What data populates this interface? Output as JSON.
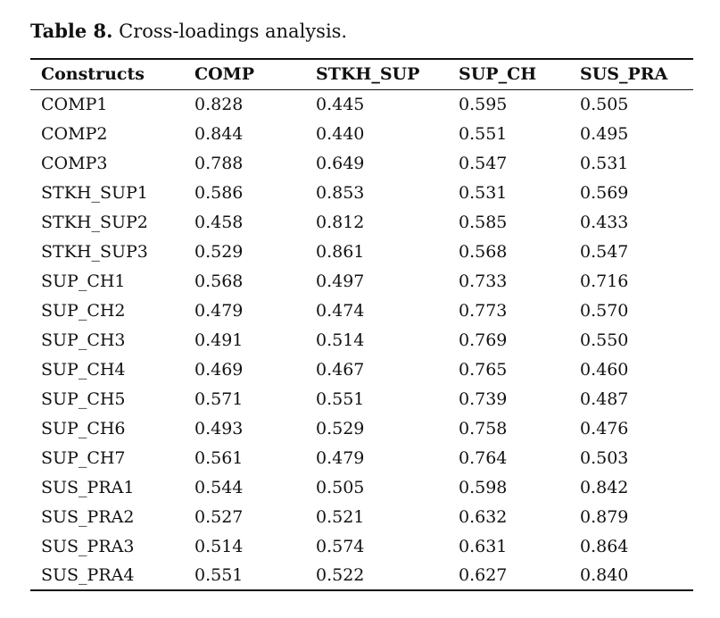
{
  "caption": {
    "label": "Table 8.",
    "text": " Cross-loadings analysis."
  },
  "table": {
    "headers": [
      "Constructs",
      "COMP",
      "STKH_SUP",
      "SUP_CH",
      "SUS_PRA"
    ],
    "rows": [
      [
        "COMP1",
        "0.828",
        "0.445",
        "0.595",
        "0.505"
      ],
      [
        "COMP2",
        "0.844",
        "0.440",
        "0.551",
        "0.495"
      ],
      [
        "COMP3",
        "0.788",
        "0.649",
        "0.547",
        "0.531"
      ],
      [
        "STKH_SUP1",
        "0.586",
        "0.853",
        "0.531",
        "0.569"
      ],
      [
        "STKH_SUP2",
        "0.458",
        "0.812",
        "0.585",
        "0.433"
      ],
      [
        "STKH_SUP3",
        "0.529",
        "0.861",
        "0.568",
        "0.547"
      ],
      [
        "SUP_CH1",
        "0.568",
        "0.497",
        "0.733",
        "0.716"
      ],
      [
        "SUP_CH2",
        "0.479",
        "0.474",
        "0.773",
        "0.570"
      ],
      [
        "SUP_CH3",
        "0.491",
        "0.514",
        "0.769",
        "0.550"
      ],
      [
        "SUP_CH4",
        "0.469",
        "0.467",
        "0.765",
        "0.460"
      ],
      [
        "SUP_CH5",
        "0.571",
        "0.551",
        "0.739",
        "0.487"
      ],
      [
        "SUP_CH6",
        "0.493",
        "0.529",
        "0.758",
        "0.476"
      ],
      [
        "SUP_CH7",
        "0.561",
        "0.479",
        "0.764",
        "0.503"
      ],
      [
        "SUS_PRA1",
        "0.544",
        "0.505",
        "0.598",
        "0.842"
      ],
      [
        "SUS_PRA2",
        "0.527",
        "0.521",
        "0.632",
        "0.879"
      ],
      [
        "SUS_PRA3",
        "0.514",
        "0.574",
        "0.631",
        "0.864"
      ],
      [
        "SUS_PRA4",
        "0.551",
        "0.522",
        "0.627",
        "0.840"
      ]
    ]
  }
}
